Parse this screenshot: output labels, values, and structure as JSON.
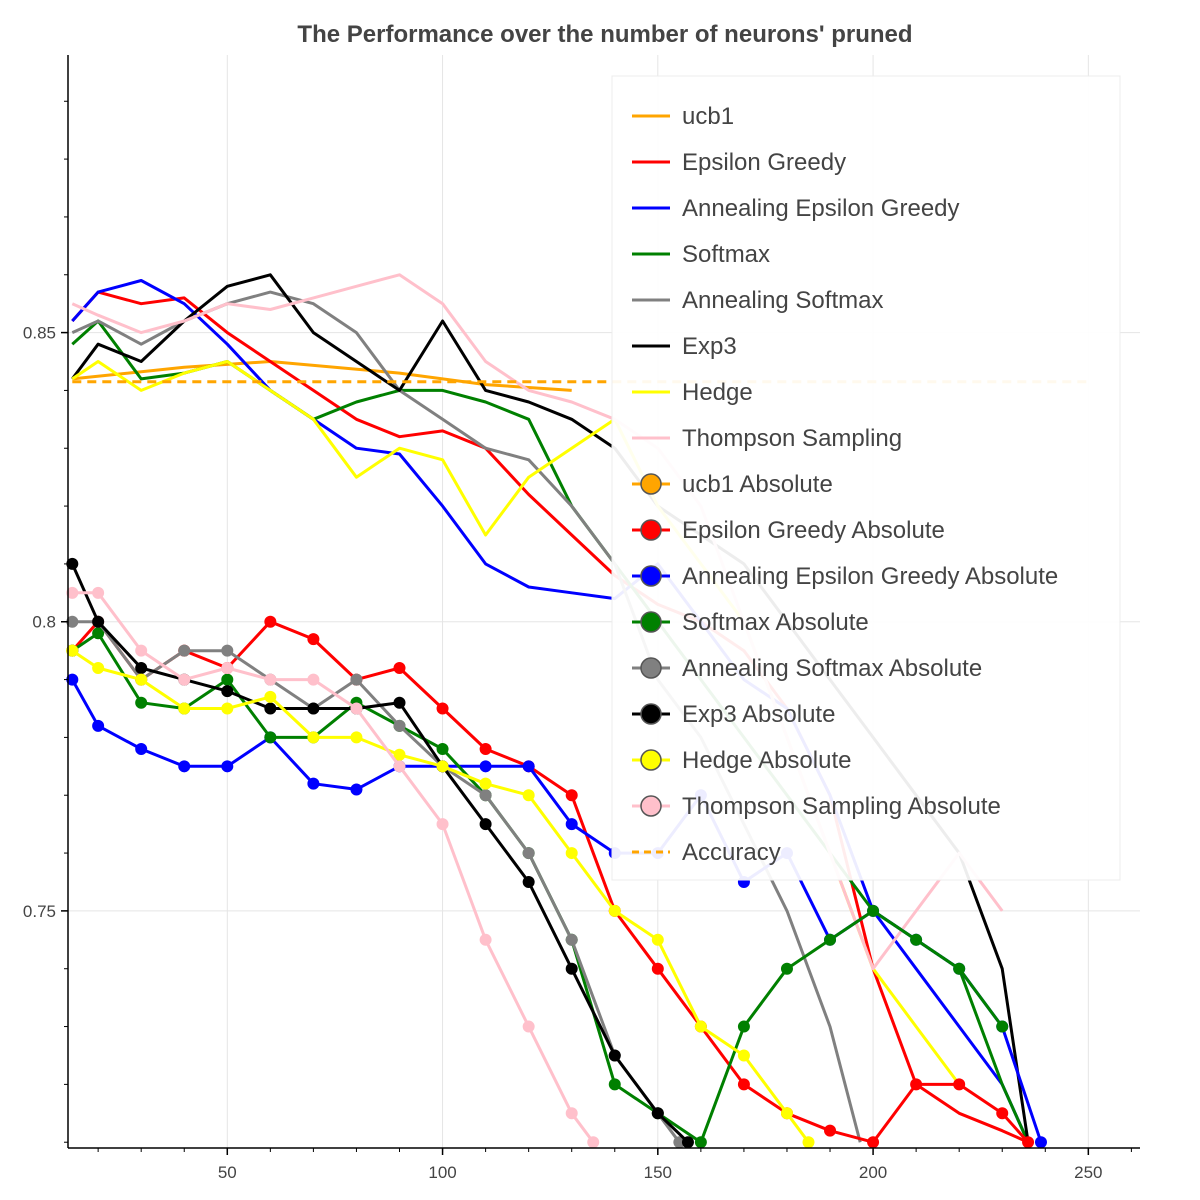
{
  "chart_data": {
    "type": "line",
    "title": "The Performance over the number of neurons' pruned",
    "xlabel": "",
    "ylabel": "",
    "xlim": [
      13,
      262
    ],
    "ylim": [
      0.709,
      0.898
    ],
    "x_ticks": [
      50,
      100,
      150,
      200,
      250
    ],
    "y_ticks": [
      0.75,
      0.8,
      0.85
    ],
    "x_tick_labels": [
      "50",
      "100",
      "150",
      "200",
      "250"
    ],
    "y_tick_labels": [
      "0.75",
      "0.8",
      "0.85"
    ],
    "grid": true,
    "legend_position": "top-right",
    "series": [
      {
        "name": "ucb1",
        "color": "#ffa500",
        "style": "line",
        "x": [
          14,
          40,
          60,
          90,
          110,
          130
        ],
        "y": [
          0.842,
          0.844,
          0.845,
          0.843,
          0.841,
          0.84
        ]
      },
      {
        "name": "Epsilon Greedy",
        "color": "#ff0000",
        "style": "line",
        "x": [
          14,
          20,
          30,
          40,
          50,
          60,
          70,
          80,
          90,
          100,
          110,
          120,
          130,
          140,
          150,
          160,
          170,
          180,
          190,
          200,
          210,
          220,
          230,
          236
        ],
        "y": [
          0.852,
          0.857,
          0.855,
          0.856,
          0.85,
          0.845,
          0.84,
          0.835,
          0.832,
          0.833,
          0.83,
          0.822,
          0.815,
          0.808,
          0.803,
          0.8,
          0.795,
          0.785,
          0.77,
          0.74,
          0.72,
          0.715,
          0.712,
          0.71
        ]
      },
      {
        "name": "Annealing Epsilon Greedy",
        "color": "#0000ff",
        "style": "line",
        "x": [
          14,
          20,
          30,
          40,
          50,
          60,
          70,
          80,
          90,
          100,
          110,
          120,
          130,
          140,
          150,
          160,
          170,
          180,
          190,
          200,
          210,
          220,
          230,
          236
        ],
        "y": [
          0.852,
          0.857,
          0.859,
          0.855,
          0.848,
          0.84,
          0.835,
          0.83,
          0.829,
          0.82,
          0.81,
          0.806,
          0.805,
          0.804,
          0.81,
          0.8,
          0.79,
          0.785,
          0.77,
          0.75,
          0.74,
          0.73,
          0.72,
          0.71
        ]
      },
      {
        "name": "Softmax",
        "color": "#008000",
        "style": "line",
        "x": [
          14,
          20,
          30,
          40,
          50,
          60,
          70,
          80,
          90,
          100,
          110,
          120,
          130,
          140,
          150,
          160,
          170,
          180,
          190,
          200,
          210,
          220,
          230,
          236
        ],
        "y": [
          0.848,
          0.852,
          0.842,
          0.843,
          0.845,
          0.84,
          0.835,
          0.838,
          0.84,
          0.84,
          0.838,
          0.835,
          0.82,
          0.81,
          0.8,
          0.79,
          0.78,
          0.77,
          0.76,
          0.75,
          0.745,
          0.74,
          0.72,
          0.71
        ]
      },
      {
        "name": "Annealing Softmax",
        "color": "#808080",
        "style": "line",
        "x": [
          14,
          20,
          30,
          40,
          50,
          60,
          70,
          80,
          90,
          100,
          110,
          120,
          130,
          140,
          150,
          160,
          170,
          180,
          190,
          197
        ],
        "y": [
          0.85,
          0.852,
          0.848,
          0.852,
          0.855,
          0.857,
          0.855,
          0.85,
          0.84,
          0.835,
          0.83,
          0.828,
          0.82,
          0.81,
          0.79,
          0.78,
          0.765,
          0.75,
          0.73,
          0.71
        ]
      },
      {
        "name": "Exp3",
        "color": "#000000",
        "style": "line",
        "x": [
          14,
          20,
          30,
          40,
          50,
          60,
          70,
          80,
          90,
          100,
          110,
          120,
          130,
          140,
          150,
          160,
          170,
          180,
          190,
          200,
          210,
          220,
          230,
          236
        ],
        "y": [
          0.842,
          0.848,
          0.845,
          0.852,
          0.858,
          0.86,
          0.85,
          0.845,
          0.84,
          0.852,
          0.84,
          0.838,
          0.835,
          0.83,
          0.82,
          0.815,
          0.81,
          0.8,
          0.79,
          0.78,
          0.77,
          0.76,
          0.74,
          0.71
        ]
      },
      {
        "name": "Hedge",
        "color": "#ffff00",
        "style": "line",
        "x": [
          14,
          20,
          30,
          40,
          50,
          60,
          70,
          80,
          90,
          100,
          110,
          120,
          130,
          140,
          150,
          160,
          170,
          180,
          190,
          200,
          210,
          220
        ],
        "y": [
          0.842,
          0.845,
          0.84,
          0.843,
          0.845,
          0.84,
          0.835,
          0.825,
          0.83,
          0.828,
          0.815,
          0.825,
          0.83,
          0.835,
          0.82,
          0.81,
          0.8,
          0.78,
          0.76,
          0.74,
          0.73,
          0.72
        ]
      },
      {
        "name": "Thompson Sampling",
        "color": "#ffc0cb",
        "style": "line",
        "x": [
          14,
          20,
          30,
          40,
          50,
          60,
          70,
          80,
          90,
          100,
          110,
          120,
          130,
          140,
          150,
          160,
          170,
          180,
          190,
          200,
          210,
          220,
          230
        ],
        "y": [
          0.855,
          0.853,
          0.85,
          0.852,
          0.855,
          0.854,
          0.856,
          0.858,
          0.86,
          0.855,
          0.845,
          0.84,
          0.838,
          0.835,
          0.83,
          0.82,
          0.8,
          0.78,
          0.76,
          0.74,
          0.75,
          0.76,
          0.75
        ]
      },
      {
        "name": "ucb1 Absolute",
        "color": "#ffa500",
        "style": "marker",
        "x": [],
        "y": []
      },
      {
        "name": "Epsilon Greedy Absolute",
        "color": "#ff0000",
        "style": "marker",
        "x": [
          14,
          20,
          30,
          40,
          50,
          60,
          70,
          80,
          90,
          100,
          110,
          120,
          130,
          140,
          150,
          160,
          170,
          180,
          190,
          200,
          210,
          220,
          230,
          236
        ],
        "y": [
          0.795,
          0.8,
          0.79,
          0.795,
          0.792,
          0.8,
          0.797,
          0.79,
          0.792,
          0.785,
          0.778,
          0.775,
          0.77,
          0.75,
          0.74,
          0.73,
          0.72,
          0.715,
          0.712,
          0.71,
          0.72,
          0.72,
          0.715,
          0.71
        ]
      },
      {
        "name": "Annealing Epsilon Greedy Absolute",
        "color": "#0000ff",
        "style": "marker",
        "x": [
          14,
          20,
          30,
          40,
          50,
          60,
          70,
          80,
          90,
          100,
          110,
          120,
          130,
          140,
          150,
          160,
          170,
          180,
          190,
          200,
          210,
          220,
          230,
          239
        ],
        "y": [
          0.79,
          0.782,
          0.778,
          0.775,
          0.775,
          0.78,
          0.772,
          0.771,
          0.775,
          0.775,
          0.775,
          0.775,
          0.765,
          0.76,
          0.76,
          0.77,
          0.755,
          0.76,
          0.745,
          0.75,
          0.745,
          0.74,
          0.73,
          0.71
        ]
      },
      {
        "name": "Softmax Absolute",
        "color": "#008000",
        "style": "marker",
        "x": [
          14,
          20,
          30,
          40,
          50,
          60,
          70,
          80,
          90,
          100,
          110,
          120,
          130,
          140,
          150,
          160,
          170,
          180,
          190,
          200,
          210,
          220,
          230
        ],
        "y": [
          0.795,
          0.798,
          0.786,
          0.785,
          0.79,
          0.78,
          0.78,
          0.786,
          0.782,
          0.778,
          0.77,
          0.76,
          0.745,
          0.72,
          0.715,
          0.71,
          0.73,
          0.74,
          0.745,
          0.75,
          0.745,
          0.74,
          0.73
        ]
      },
      {
        "name": "Annealing Softmax Absolute",
        "color": "#808080",
        "style": "marker",
        "x": [
          14,
          20,
          30,
          40,
          50,
          60,
          70,
          80,
          90,
          100,
          110,
          120,
          130,
          140,
          150,
          155
        ],
        "y": [
          0.8,
          0.8,
          0.79,
          0.795,
          0.795,
          0.79,
          0.785,
          0.79,
          0.782,
          0.775,
          0.77,
          0.76,
          0.745,
          0.725,
          0.715,
          0.71
        ]
      },
      {
        "name": "Exp3 Absolute",
        "color": "#000000",
        "style": "marker",
        "x": [
          14,
          20,
          30,
          40,
          50,
          60,
          70,
          80,
          90,
          100,
          110,
          120,
          130,
          140,
          150,
          157
        ],
        "y": [
          0.81,
          0.8,
          0.792,
          0.79,
          0.788,
          0.785,
          0.785,
          0.785,
          0.786,
          0.775,
          0.765,
          0.755,
          0.74,
          0.725,
          0.715,
          0.71
        ]
      },
      {
        "name": "Hedge Absolute",
        "color": "#ffff00",
        "style": "marker",
        "x": [
          14,
          20,
          30,
          40,
          50,
          60,
          70,
          80,
          90,
          100,
          110,
          120,
          130,
          140,
          150,
          160,
          170,
          180,
          185
        ],
        "y": [
          0.795,
          0.792,
          0.79,
          0.785,
          0.785,
          0.787,
          0.78,
          0.78,
          0.777,
          0.775,
          0.772,
          0.77,
          0.76,
          0.75,
          0.745,
          0.73,
          0.725,
          0.715,
          0.71
        ]
      },
      {
        "name": "Thompson Sampling Absolute",
        "color": "#ffc0cb",
        "style": "marker",
        "x": [
          14,
          20,
          30,
          40,
          50,
          60,
          70,
          80,
          90,
          100,
          110,
          120,
          130,
          135
        ],
        "y": [
          0.805,
          0.805,
          0.795,
          0.79,
          0.792,
          0.79,
          0.79,
          0.785,
          0.775,
          0.765,
          0.745,
          0.73,
          0.715,
          0.71
        ]
      },
      {
        "name": "Accuracy",
        "color": "#ffa500",
        "style": "dashed",
        "x": [
          14,
          250
        ],
        "y": [
          0.8415,
          0.8415
        ]
      }
    ]
  }
}
